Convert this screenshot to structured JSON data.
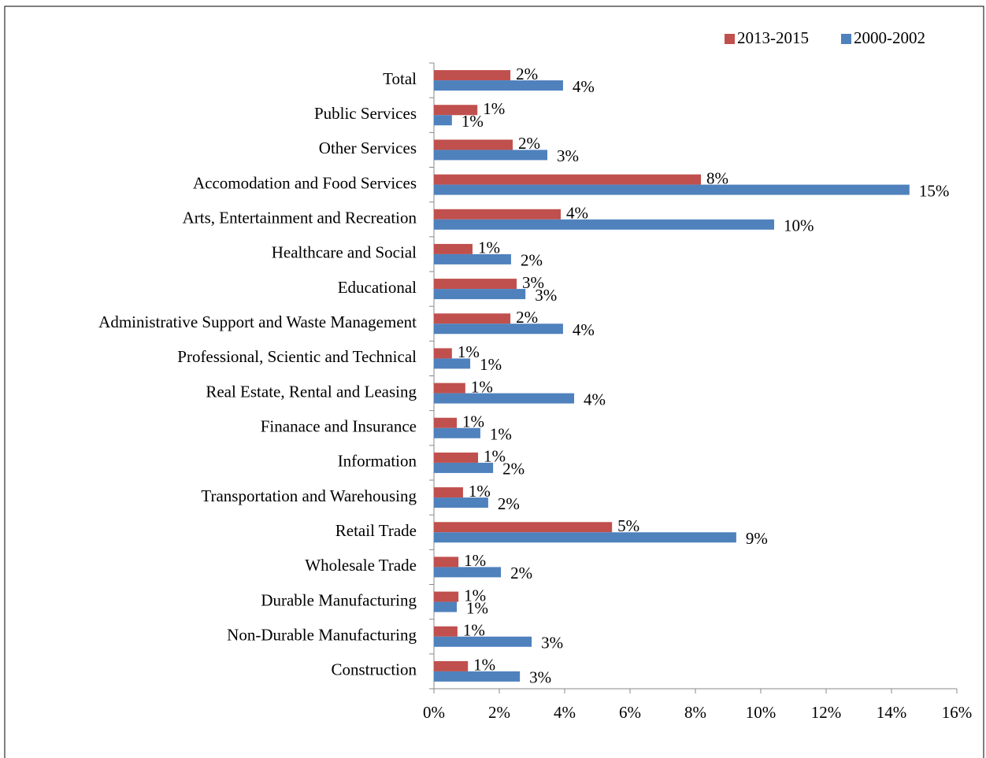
{
  "chart_data": {
    "type": "hbar",
    "categories": [
      "Total",
      "Public Services",
      "Other Services",
      "Accomodation and Food Services",
      "Arts, Entertainment and Recreation",
      "Healthcare and Social",
      "Educational",
      "Administrative Support and Waste Management",
      "Professional, Scientic and Technical",
      "Real Estate, Rental and Leasing",
      "Finanace and Insurance",
      "Information",
      "Transportation and Warehousing",
      "Retail Trade",
      "Wholesale Trade",
      "Durable Manufacturing",
      "Non-Durable Manufacturing",
      "Construction"
    ],
    "series": [
      {
        "name": "2013-2015",
        "color": "#c0504d",
        "values": [
          2.34,
          1.33,
          2.41,
          8.17,
          3.88,
          1.18,
          2.53,
          2.34,
          0.55,
          0.96,
          0.7,
          1.35,
          0.89,
          5.45,
          0.75,
          0.75,
          0.72,
          1.04
        ],
        "value_labels": [
          "2%",
          "1%",
          "2%",
          "8%",
          "4%",
          "1%",
          "3%",
          "2%",
          "1%",
          "1%",
          "1%",
          "1%",
          "1%",
          "5%",
          "1%",
          "1%",
          "1%",
          "1%"
        ]
      },
      {
        "name": "2000-2002",
        "color": "#4f81bd",
        "values": [
          3.95,
          0.55,
          3.47,
          14.55,
          10.41,
          2.36,
          2.8,
          3.95,
          1.11,
          4.29,
          1.42,
          1.81,
          1.66,
          9.25,
          2.05,
          0.7,
          2.99,
          2.63
        ],
        "value_labels": [
          "4%",
          "1%",
          "3%",
          "15%",
          "10%",
          "2%",
          "3%",
          "4%",
          "1%",
          "4%",
          "1%",
          "2%",
          "2%",
          "9%",
          "2%",
          "1%",
          "3%",
          "3%"
        ]
      }
    ],
    "xlim": [
      0,
      16
    ],
    "xticks": [
      {
        "value": 0,
        "label": "0%"
      },
      {
        "value": 2,
        "label": "2%"
      },
      {
        "value": 4,
        "label": "4%"
      },
      {
        "value": 6,
        "label": "6%"
      },
      {
        "value": 8,
        "label": "8%"
      },
      {
        "value": 10,
        "label": "10%"
      },
      {
        "value": 12,
        "label": "12%"
      },
      {
        "value": 14,
        "label": "14%"
      },
      {
        "value": 16,
        "label": "16%"
      }
    ],
    "legend": "top-right"
  }
}
